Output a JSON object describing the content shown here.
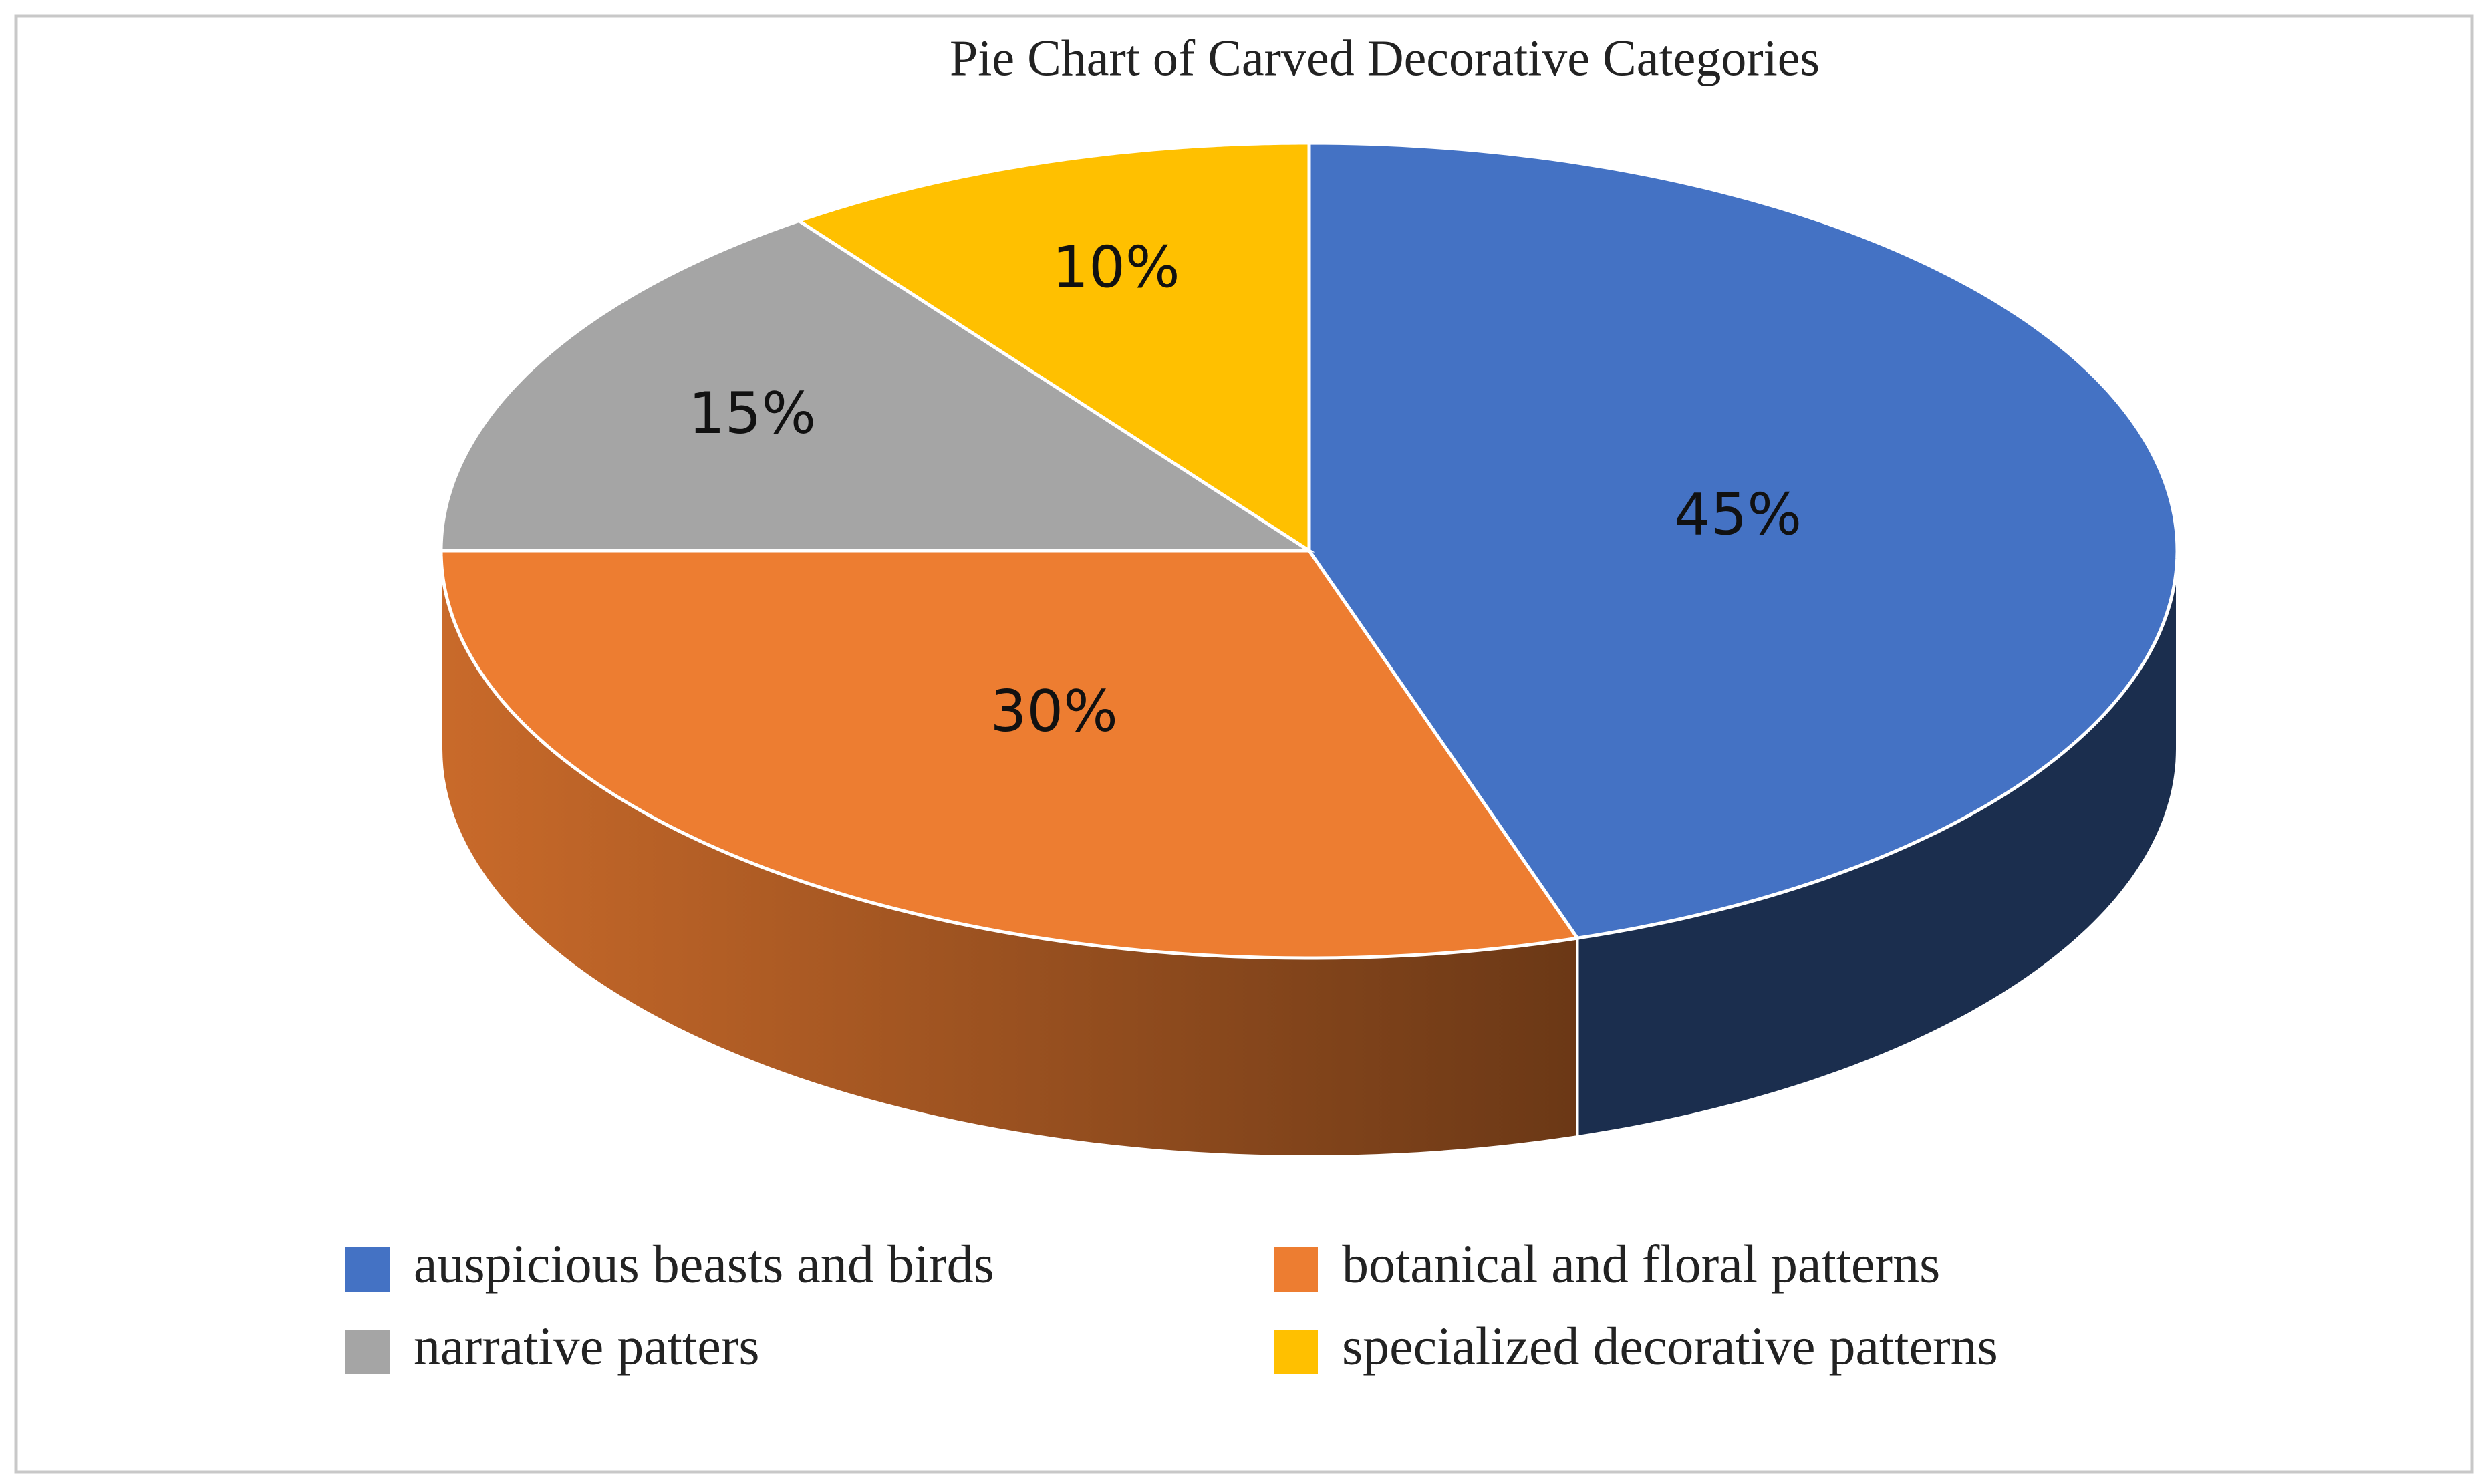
{
  "chart_data": {
    "type": "pie",
    "title": "Pie Chart of Carved Decorative Categories",
    "categories": [
      "auspicious beasts and birds",
      "botanical and floral patterns",
      "narrative patters",
      "specialized decorative patterns"
    ],
    "values": [
      45,
      30,
      15,
      10
    ],
    "value_labels": [
      "45%",
      "30%",
      "15%",
      "10%"
    ],
    "colors": [
      "#4472c4",
      "#ed7d31",
      "#a5a5a5",
      "#ffc000"
    ]
  }
}
